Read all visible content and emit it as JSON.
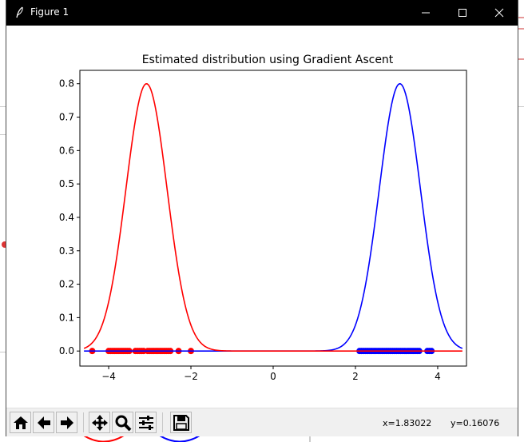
{
  "window": {
    "title": "Figure 1",
    "minimize_icon": "minimize-icon",
    "maximize_icon": "maximize-icon",
    "close_icon": "close-icon"
  },
  "chart_data": {
    "type": "line",
    "title": "Estimated distribution using Gradient Ascent",
    "xlabel": "",
    "ylabel": "",
    "xlim": [
      -4.7,
      4.7
    ],
    "ylim": [
      -0.045,
      0.84
    ],
    "xticks": [
      -4,
      -2,
      0,
      2,
      4
    ],
    "xtick_labels": [
      "−4",
      "−2",
      "0",
      "2",
      "4"
    ],
    "yticks": [
      0.0,
      0.1,
      0.2,
      0.3,
      0.4,
      0.5,
      0.6,
      0.7,
      0.8
    ],
    "ytick_labels": [
      "0.0",
      "0.1",
      "0.2",
      "0.3",
      "0.4",
      "0.5",
      "0.6",
      "0.7",
      "0.8"
    ],
    "grid": false,
    "series": [
      {
        "color": "#0000ff",
        "kind": "gaussian-curve",
        "mean": 3.08,
        "std": 0.5,
        "peak": 0.8,
        "x_range": [
          -4.6,
          4.6
        ]
      },
      {
        "color": "#ff0000",
        "kind": "gaussian-curve",
        "mean": -3.08,
        "std": 0.5,
        "peak": 0.8,
        "x_range": [
          -4.6,
          4.6
        ]
      }
    ],
    "scatter": [
      {
        "color": "#0000ff",
        "y": 0.0,
        "x": [
          2.1,
          2.15,
          2.2,
          2.25,
          2.3,
          2.35,
          2.4,
          2.45,
          2.5,
          2.55,
          2.6,
          2.65,
          2.7,
          2.75,
          2.8,
          2.85,
          2.9,
          2.95,
          3.0,
          3.05,
          3.1,
          3.15,
          3.2,
          3.25,
          3.3,
          3.35,
          3.4,
          3.45,
          3.5,
          3.55,
          3.75,
          3.8,
          3.85
        ]
      },
      {
        "color": "#ff0000",
        "y": 0.0,
        "x": [
          -4.4,
          -4.0,
          -3.95,
          -3.9,
          -3.85,
          -3.8,
          -3.75,
          -3.7,
          -3.65,
          -3.6,
          -3.55,
          -3.5,
          -3.35,
          -3.3,
          -3.25,
          -3.2,
          -3.15,
          -3.05,
          -3.0,
          -2.95,
          -2.9,
          -2.85,
          -2.8,
          -2.75,
          -2.7,
          -2.65,
          -2.6,
          -2.55,
          -2.5,
          -2.3,
          -2.0
        ]
      }
    ]
  },
  "toolbar": {
    "buttons": [
      {
        "name": "home-icon"
      },
      {
        "name": "back-arrow-icon"
      },
      {
        "name": "forward-arrow-icon"
      },
      {
        "name": "pan-icon"
      },
      {
        "name": "zoom-icon"
      },
      {
        "name": "configure-subplots-icon"
      },
      {
        "name": "save-icon"
      }
    ],
    "coord_x": "x=1.83022",
    "coord_y": "y=0.16076"
  }
}
